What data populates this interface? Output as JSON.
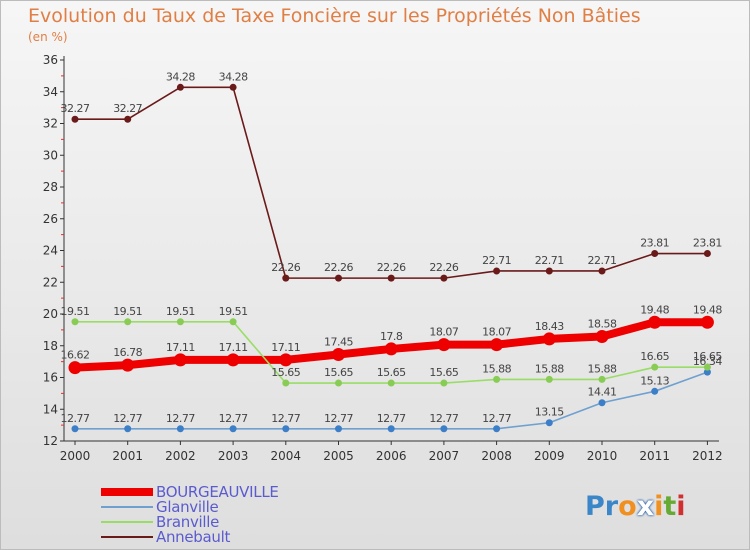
{
  "title": "Evolution du Taux de Taxe Foncière sur les Propriétés Non Bâties",
  "unit": "(en %)",
  "logo": {
    "text": "Proxiti",
    "letters": [
      {
        "ch": "P",
        "color": "#3a86c8"
      },
      {
        "ch": "r",
        "color": "#3a86c8"
      },
      {
        "ch": "o",
        "color": "#f09020"
      },
      {
        "ch": "x",
        "color": "#ffffff"
      },
      {
        "ch": "i",
        "color": "#f09020"
      },
      {
        "ch": "t",
        "color": "#66aa33"
      },
      {
        "ch": "i",
        "color": "#d03030"
      }
    ]
  },
  "chart_data": {
    "type": "line",
    "title": "Evolution du Taux de Taxe Foncière sur les Propriétés Non Bâties",
    "ylabel": "(en %)",
    "x": [
      "2000",
      "2001",
      "2002",
      "2003",
      "2004",
      "2005",
      "2006",
      "2007",
      "2008",
      "2009",
      "2010",
      "2011",
      "2012"
    ],
    "ylim": [
      12,
      36
    ],
    "yticks": [
      12,
      14,
      16,
      18,
      20,
      22,
      24,
      26,
      28,
      30,
      32,
      34,
      36
    ],
    "grid": false,
    "legend_position": "bottom-left",
    "series": [
      {
        "name": "BOURGEAUVILLE",
        "color": "#ee0000",
        "width": 8,
        "marker": 6.5,
        "values": [
          16.62,
          16.78,
          17.11,
          17.11,
          17.11,
          17.45,
          17.8,
          18.07,
          18.07,
          18.43,
          18.58,
          19.48,
          19.48
        ],
        "labels": [
          "16.62",
          "16.78",
          "17.11",
          "17.11",
          "17.11",
          "17.45",
          "17.8",
          "18.07",
          "18.07",
          "18.43",
          "18.58",
          "19.48",
          "19.48"
        ]
      },
      {
        "name": "Glanville",
        "color": "#6fa0d0",
        "dot": "#3c7fc8",
        "width": 1.6,
        "marker": 3.5,
        "values": [
          12.77,
          12.77,
          12.77,
          12.77,
          12.77,
          12.77,
          12.77,
          12.77,
          12.77,
          13.15,
          14.41,
          15.13,
          16.34
        ],
        "labels": [
          "12.77",
          "12.77",
          "12.77",
          "12.77",
          "12.77",
          "12.77",
          "12.77",
          "12.77",
          "12.77",
          "13.15",
          "14.41",
          "15.13",
          "16.34"
        ]
      },
      {
        "name": "Branville",
        "color": "#99dd66",
        "dot": "#88cc55",
        "width": 1.6,
        "marker": 3.5,
        "values": [
          19.51,
          19.51,
          19.51,
          19.51,
          15.65,
          15.65,
          15.65,
          15.65,
          15.88,
          15.88,
          15.88,
          16.65,
          16.65
        ],
        "labels": [
          "19.51",
          "19.51",
          "19.51",
          "19.51",
          "15.65",
          "15.65",
          "15.65",
          "15.65",
          "15.88",
          "15.88",
          "15.88",
          "16.65",
          "16.65"
        ]
      },
      {
        "name": "Annebault",
        "color": "#6b1a1a",
        "dot": "#6b1a1a",
        "width": 1.6,
        "marker": 3.5,
        "values": [
          32.27,
          32.27,
          34.28,
          34.28,
          22.26,
          22.26,
          22.26,
          22.26,
          22.71,
          22.71,
          22.71,
          23.81,
          23.81
        ],
        "labels": [
          "32.27",
          "32.27",
          "34.28",
          "34.28",
          "22.26",
          "22.26",
          "22.26",
          "22.26",
          "22.71",
          "22.71",
          "22.71",
          "23.81",
          "23.81"
        ]
      }
    ]
  }
}
